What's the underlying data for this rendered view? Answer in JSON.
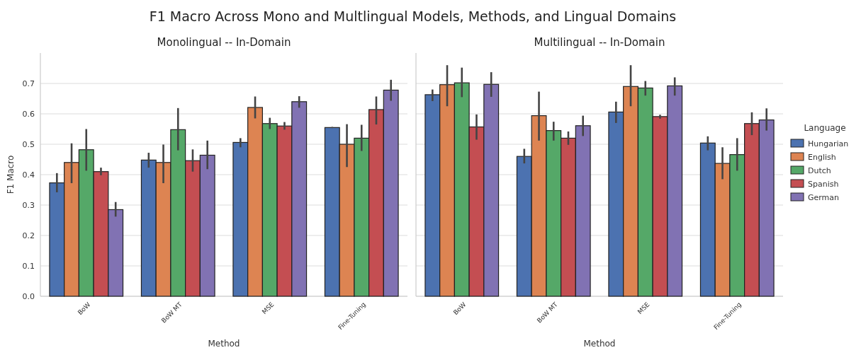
{
  "chart_data": [
    {
      "type": "bar",
      "title": "Monolingual -- In-Domain",
      "xlabel": "Method",
      "ylabel": "F1 Macro",
      "annotations": [
        "F1 Macro Across Mono and Multlingual Models, Methods, and Lingual Domains"
      ],
      "categories": [
        "BoW",
        "BoW MT",
        "MSE",
        "Fine-Tuning"
      ],
      "ylim": [
        0,
        0.8
      ],
      "yticks": [
        {
          "value": 0,
          "label": "0.0"
        },
        0.1,
        0.2,
        0.3,
        0.4,
        0.5,
        0.6,
        0.7
      ],
      "grid": "y",
      "legend": false,
      "series": [
        {
          "color": "#4c72b0",
          "values": [
            0.373,
            0.448,
            0.506,
            0.555
          ],
          "errors": [
            [
              0.342,
              0.405
            ],
            [
              0.423,
              0.472
            ],
            [
              0.49,
              0.52
            ],
            [
              0.553,
              0.557
            ]
          ]
        },
        {
          "color": "#dd8452",
          "values": [
            0.44,
            0.44,
            0.621,
            0.5
          ],
          "errors": [
            [
              0.372,
              0.503
            ],
            [
              0.372,
              0.499
            ],
            [
              0.585,
              0.657
            ],
            [
              0.425,
              0.566
            ]
          ]
        },
        {
          "color": "#55a868",
          "values": [
            0.482,
            0.548,
            0.568,
            0.52
          ],
          "errors": [
            [
              0.413,
              0.55
            ],
            [
              0.48,
              0.619
            ],
            [
              0.55,
              0.587
            ],
            [
              0.478,
              0.564
            ]
          ]
        },
        {
          "color": "#c44e52",
          "values": [
            0.41,
            0.446,
            0.56,
            0.614
          ],
          "errors": [
            [
              0.398,
              0.423
            ],
            [
              0.41,
              0.483
            ],
            [
              0.548,
              0.573
            ],
            [
              0.565,
              0.657
            ]
          ]
        },
        {
          "color": "#8172b3",
          "values": [
            0.285,
            0.464,
            0.64,
            0.678
          ],
          "errors": [
            [
              0.262,
              0.31
            ],
            [
              0.418,
              0.512
            ],
            [
              0.62,
              0.658
            ],
            [
              0.643,
              0.712
            ]
          ]
        }
      ]
    },
    {
      "type": "bar",
      "title": "Multilingual -- In-Domain",
      "xlabel": "Method",
      "categories": [
        "BoW",
        "BoW MT",
        "MSE",
        "Fine-Tuning"
      ],
      "ylim": [
        0,
        0.8
      ],
      "yticks": [
        0,
        0.1,
        0.2,
        0.3,
        0.4,
        0.5,
        0.6,
        0.7
      ],
      "tick_labels": "x",
      "grid": "y",
      "legend": "right",
      "legend_title": "Language",
      "series": [
        {
          "name": "Hungarian",
          "color": "#4c72b0",
          "values": [
            0.663,
            0.46,
            0.606,
            0.504
          ],
          "errors": [
            [
              0.642,
              0.68
            ],
            [
              0.437,
              0.485
            ],
            [
              0.57,
              0.64
            ],
            [
              0.48,
              0.526
            ]
          ]
        },
        {
          "name": "English",
          "color": "#dd8452",
          "values": [
            0.696,
            0.594,
            0.69,
            0.437
          ],
          "errors": [
            [
              0.625,
              0.76
            ],
            [
              0.512,
              0.673
            ],
            [
              0.625,
              0.76
            ],
            [
              0.385,
              0.49
            ]
          ]
        },
        {
          "name": "Dutch",
          "color": "#55a868",
          "values": [
            0.702,
            0.545,
            0.685,
            0.466
          ],
          "errors": [
            [
              0.655,
              0.752
            ],
            [
              0.512,
              0.574
            ],
            [
              0.66,
              0.708
            ],
            [
              0.413,
              0.52
            ]
          ]
        },
        {
          "name": "Spanish",
          "color": "#c44e52",
          "values": [
            0.557,
            0.52,
            0.591,
            0.568
          ],
          "errors": [
            [
              0.515,
              0.598
            ],
            [
              0.498,
              0.542
            ],
            [
              0.584,
              0.597
            ],
            [
              0.53,
              0.605
            ]
          ]
        },
        {
          "name": "German",
          "color": "#8172b3",
          "values": [
            0.697,
            0.561,
            0.692,
            0.58
          ],
          "errors": [
            [
              0.656,
              0.737
            ],
            [
              0.527,
              0.594
            ],
            [
              0.66,
              0.72
            ],
            [
              0.545,
              0.618
            ]
          ]
        }
      ]
    }
  ]
}
